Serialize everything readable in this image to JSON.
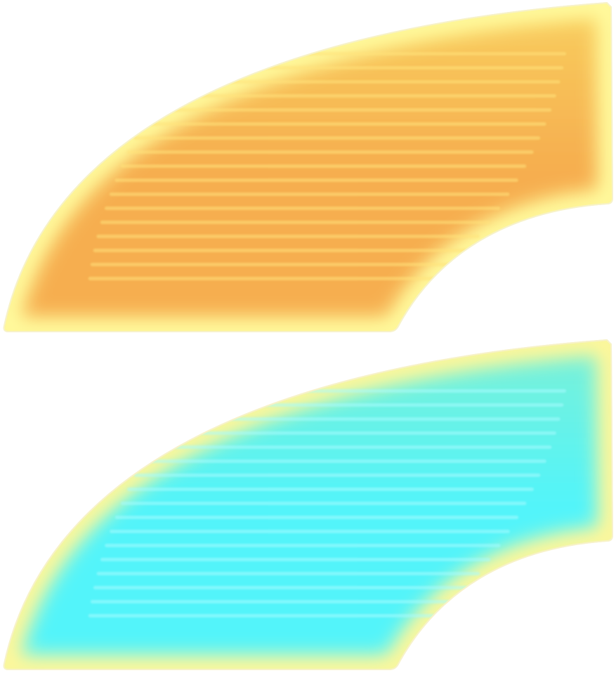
{
  "shapes": [
    {
      "name": "orange-arc-segment",
      "core_color": "#f6ae4f",
      "mid_color": "#f9cf5f",
      "glow_color": "#fffa9c",
      "stripe_color": "#ffe27a",
      "edge_color": "#f7f2c8"
    },
    {
      "name": "cyan-arc-segment",
      "core_color": "#52f4fa",
      "mid_color": "#7cf1d6",
      "glow_color": "#fff79a",
      "stripe_color": "#a8fbff",
      "edge_color": "#f7f2c8"
    }
  ]
}
